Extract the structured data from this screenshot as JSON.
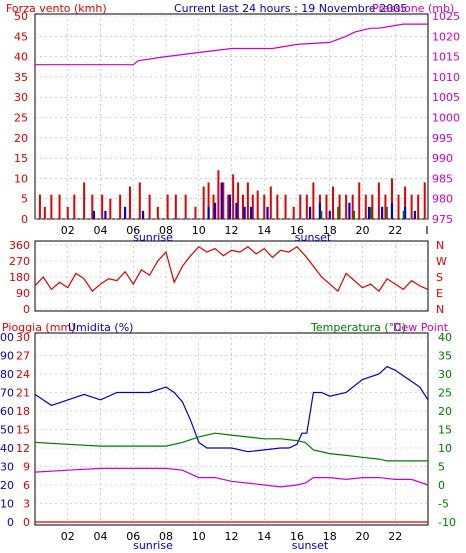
{
  "header": {
    "title_left": "Forza vento (kmh)",
    "title_center": "Current last 24 hours : 19 Novembre 2005",
    "title_right": "Pressione (mb)"
  },
  "colors": {
    "red": "#e00000",
    "blue": "#0000cc",
    "magenta": "#cc00cc",
    "green": "#007a00",
    "grid": "#b0b0b0",
    "frame": "#000000"
  },
  "x_axis": {
    "hour_ticks": [
      "02",
      "04",
      "06",
      "08",
      "10",
      "12",
      "14",
      "16",
      "18",
      "20",
      "22"
    ],
    "sunrise_label": "sunrise",
    "sunset_label": "sunset",
    "end_tick_top": "I"
  },
  "chart_data": [
    {
      "type": "bar",
      "name": "wind",
      "title": "Current last 24 hours : 19 Novembre 2005",
      "ylabel_left": "Forza vento (kmh)",
      "ylabel_right": "Pressione (mb)",
      "y_left_ticks": [
        0,
        5,
        10,
        15,
        20,
        25,
        30,
        35,
        40,
        45,
        50
      ],
      "y_right_ticks": [
        975,
        980,
        985,
        990,
        995,
        1000,
        1005,
        1010,
        1015,
        1020,
        1025
      ],
      "ylim_left": [
        0,
        50
      ],
      "ylim_right": [
        975,
        1025
      ],
      "x_hours": [
        0,
        24
      ],
      "pressure": {
        "x": [
          0,
          6,
          6.3,
          8,
          10,
          12,
          14.5,
          16,
          18,
          19,
          19.5,
          20.5,
          21,
          22.5,
          24
        ],
        "y": [
          1013,
          1013,
          1014,
          1015,
          1016,
          1017,
          1017,
          1018,
          1018.5,
          1020,
          1021,
          1022,
          1022,
          1023,
          1023
        ]
      },
      "gust_bars": {
        "x": [
          0.3,
          0.6,
          1.0,
          1.5,
          2.0,
          2.4,
          3.0,
          3.5,
          4.1,
          4.6,
          5.2,
          5.8,
          6.4,
          7.0,
          7.5,
          8.1,
          8.6,
          9.2,
          9.8,
          10.3,
          10.6,
          10.9,
          11.2,
          11.5,
          11.8,
          12.1,
          12.4,
          12.7,
          13.0,
          13.3,
          13.6,
          14.0,
          14.4,
          14.8,
          15.3,
          15.8,
          16.2,
          16.6,
          17.0,
          17.4,
          17.8,
          18.2,
          18.6,
          19.0,
          19.4,
          19.8,
          20.2,
          20.6,
          21.0,
          21.4,
          21.8,
          22.2,
          22.6,
          23.0,
          23.4,
          23.8
        ],
        "values": [
          6,
          3,
          6,
          6,
          3,
          6,
          9,
          6,
          6,
          5,
          6,
          8,
          9,
          6,
          3,
          6,
          6,
          6,
          3,
          8,
          9,
          6,
          12,
          9,
          6,
          11,
          9,
          6,
          9,
          6,
          7,
          6,
          8,
          6,
          6,
          3,
          6,
          6,
          9,
          6,
          6,
          8,
          6,
          6,
          6,
          9,
          6,
          6,
          9,
          6,
          10,
          6,
          8,
          6,
          6,
          9
        ]
      },
      "avg_bars": {
        "x": [
          3.6,
          4.3,
          5.5,
          6.6,
          10.6,
          11.0,
          11.4,
          11.9,
          12.3,
          12.8,
          13.2,
          14.2,
          16.8,
          17.4,
          18.0,
          19.2,
          20.4,
          21.2,
          21.8,
          22.6,
          23.2
        ],
        "values": [
          2,
          2,
          3,
          2,
          3,
          4,
          9,
          6,
          4,
          3,
          3,
          3,
          3,
          4,
          2,
          4,
          3,
          3,
          4,
          3,
          2
        ]
      },
      "calm_green": {
        "x": [
          17.5,
          18.5,
          19.5,
          20.5,
          21.5,
          22.5
        ],
        "values": [
          2,
          3,
          2,
          3,
          3,
          2
        ]
      }
    },
    {
      "type": "line",
      "name": "wind_direction",
      "y_left_ticks": [
        0,
        90,
        180,
        270,
        360
      ],
      "y_right_labels": [
        "N",
        "W",
        "S",
        "E",
        "N"
      ],
      "ylim": [
        0,
        360
      ],
      "x": [
        0,
        0.5,
        1,
        1.5,
        2,
        2.5,
        3,
        3.5,
        4,
        4.5,
        5,
        5.5,
        6,
        6.5,
        7,
        7.5,
        8,
        8.5,
        9,
        9.5,
        10,
        10.5,
        11,
        11.5,
        12,
        12.5,
        13,
        13.5,
        14,
        14.5,
        15,
        15.5,
        16,
        16.5,
        17,
        17.5,
        18,
        18.5,
        19,
        19.5,
        20,
        20.5,
        21,
        21.5,
        22,
        22.5,
        23,
        23.5,
        24
      ],
      "y": [
        130,
        180,
        110,
        150,
        120,
        200,
        170,
        100,
        140,
        170,
        160,
        210,
        140,
        220,
        190,
        270,
        320,
        150,
        240,
        300,
        350,
        320,
        340,
        300,
        330,
        320,
        350,
        310,
        340,
        290,
        330,
        320,
        350,
        300,
        240,
        180,
        140,
        100,
        200,
        160,
        120,
        140,
        100,
        170,
        140,
        110,
        160,
        130,
        110
      ]
    },
    {
      "type": "line",
      "name": "rain_humidity_temp",
      "ylabel_left_1": "Pioggia (mm)",
      "ylabel_left_2": "Umidita (%)",
      "ylabel_right_1": "Temperatura (°C)",
      "ylabel_right_2": "Dew Point",
      "y_rain_ticks": [
        0,
        3,
        6,
        9,
        12,
        15,
        18,
        21,
        24,
        27,
        30
      ],
      "y_humidity_ticks": [
        0,
        10,
        20,
        30,
        40,
        50,
        60,
        70,
        80,
        90,
        100
      ],
      "y_temp_ticks": [
        -10,
        -5,
        0,
        5,
        10,
        15,
        20,
        25,
        30,
        35,
        40
      ],
      "ylim_temp": [
        -10,
        40
      ],
      "ylim_humidity": [
        0,
        100
      ],
      "series": [
        {
          "name": "Umidita (%)",
          "x": [
            0,
            0.5,
            1,
            2,
            3,
            4,
            5,
            6,
            7,
            8,
            8.5,
            9,
            9.5,
            10,
            10.5,
            11,
            12,
            13,
            14,
            15,
            15.5,
            16,
            16.3,
            16.6,
            17,
            17.5,
            18,
            19,
            20,
            21,
            21.5,
            22,
            22.5,
            23,
            23.5,
            24
          ],
          "y": [
            69,
            66,
            63,
            66,
            69,
            66,
            70,
            70,
            70,
            73,
            70,
            65,
            55,
            43,
            40,
            40,
            40,
            38,
            39,
            40,
            40,
            42,
            48,
            48,
            70,
            70,
            68,
            70,
            77,
            80,
            84,
            82,
            79,
            76,
            73,
            66
          ]
        },
        {
          "name": "Temperatura (°C)",
          "x": [
            0,
            2,
            4,
            6,
            8,
            9,
            10,
            11,
            12,
            14,
            15,
            16,
            16.5,
            17,
            18,
            19,
            20,
            21,
            21.5,
            22,
            23,
            24
          ],
          "y": [
            11.5,
            11,
            10.5,
            10.5,
            10.5,
            11.5,
            13,
            14,
            13.5,
            12.5,
            12.5,
            12,
            11.5,
            9.5,
            8.5,
            8,
            7.5,
            7,
            6.5,
            6.5,
            6.5,
            6.5
          ]
        },
        {
          "name": "Dew Point",
          "x": [
            0,
            2,
            4,
            6,
            8,
            9,
            10,
            11,
            12,
            13,
            14,
            15,
            16,
            16.5,
            17,
            18,
            19,
            20,
            21,
            22,
            23,
            24
          ],
          "y": [
            3.5,
            4,
            4.5,
            4.5,
            4.5,
            4,
            2,
            2,
            1,
            0.5,
            0,
            -0.5,
            0,
            0.5,
            2,
            2,
            1.5,
            2,
            2,
            1.5,
            1.5,
            0
          ]
        },
        {
          "name": "Pioggia (mm)",
          "x": [
            0,
            24
          ],
          "y": [
            0,
            0
          ]
        }
      ]
    }
  ]
}
